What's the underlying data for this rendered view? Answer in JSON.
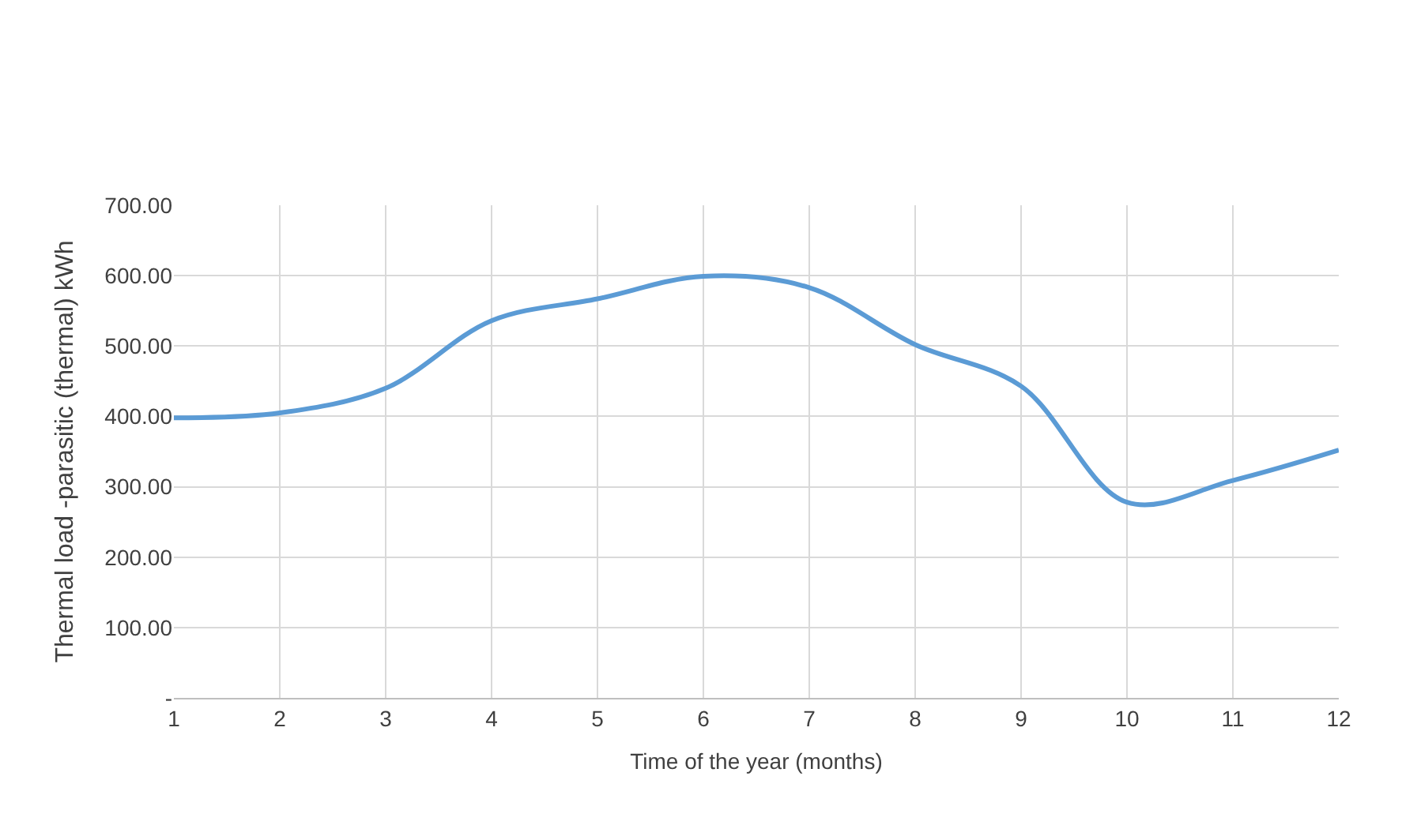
{
  "chart_data": {
    "type": "line",
    "xlabel": "Time of the year (months)",
    "ylabel": "Thermal load -parasitic (thermal) kWh",
    "x": [
      1,
      2,
      3,
      4,
      5,
      6,
      7,
      8,
      9,
      10,
      11,
      12
    ],
    "series": [
      {
        "color": "#5b9bd5",
        "values": [
          398,
          405,
          440,
          536,
          567,
          599,
          583,
          502,
          443,
          278,
          309,
          352
        ]
      }
    ],
    "xlim": [
      1,
      12
    ],
    "xticks": [
      1,
      2,
      3,
      4,
      5,
      6,
      7,
      8,
      9,
      10,
      11,
      12
    ],
    "ylim": [
      0,
      700
    ],
    "yticks": [
      {
        "value": 0,
        "label": "-"
      },
      {
        "value": 100,
        "label": "100.00"
      },
      {
        "value": 200,
        "label": "200.00"
      },
      {
        "value": 300,
        "label": "300.00"
      },
      {
        "value": 400,
        "label": "400.00"
      },
      {
        "value": 500,
        "label": "500.00"
      },
      {
        "value": 600,
        "label": "600.00"
      },
      {
        "value": 700,
        "label": "700.00"
      }
    ],
    "grid": true,
    "legend": false,
    "marker": "none",
    "line_style": "solid"
  }
}
